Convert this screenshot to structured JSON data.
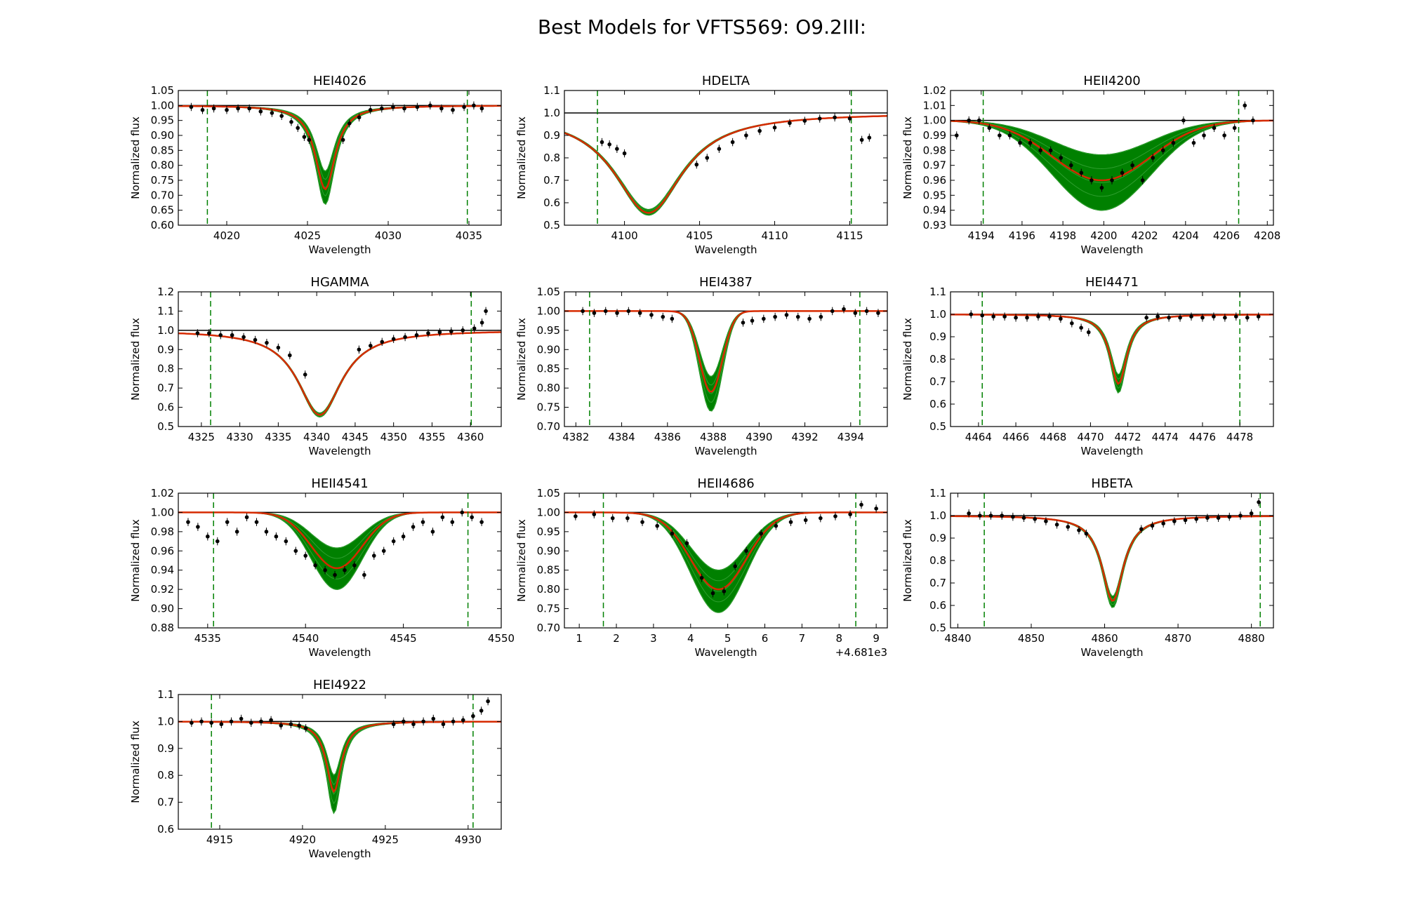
{
  "figure": {
    "title": "Best Models for VFTS569: O9.2III:",
    "colors": {
      "model": "#008000",
      "best": "#d62a00",
      "data": "#000000",
      "frame": "#000000"
    }
  },
  "chart_data": [
    {
      "type": "line",
      "title": "HEI4026",
      "xlabel": "Wavelength",
      "ylabel": "Normalized flux",
      "xlim": [
        4017,
        4037
      ],
      "ylim": [
        0.6,
        1.05
      ],
      "xticks": [
        4020,
        4025,
        4030,
        4035
      ],
      "xtick_labels": [
        "4020",
        "4025",
        "4030",
        "4035"
      ],
      "yticks": [
        0.6,
        0.65,
        0.7,
        0.75,
        0.8,
        0.85,
        0.9,
        0.95,
        1.0,
        1.05
      ],
      "ytick_labels": [
        "0.60",
        "0.65",
        "0.70",
        "0.75",
        "0.80",
        "0.85",
        "0.90",
        "0.95",
        "1.00",
        "1.05"
      ],
      "fit_window": [
        4018.8,
        4034.9
      ],
      "line_center": 4026.1,
      "model": {
        "kind": "lorentz",
        "width": 0.75,
        "depth_best": 0.28,
        "depth_min": 0.22,
        "depth_max": 0.33
      },
      "observed": {
        "x": [
          4017.8,
          4018.5,
          4019.2,
          4020.0,
          4020.7,
          4021.4,
          4022.1,
          4022.8,
          4023.4,
          4024.0,
          4024.4,
          4024.8,
          4025.1,
          4027.2,
          4027.6,
          4028.2,
          4028.9,
          4029.6,
          4030.3,
          4031.0,
          4031.8,
          4032.6,
          4033.3,
          4034.0,
          4034.7,
          4035.3,
          4035.8
        ],
        "y": [
          0.995,
          0.985,
          0.99,
          0.985,
          0.99,
          0.99,
          0.98,
          0.975,
          0.965,
          0.945,
          0.925,
          0.895,
          0.885,
          0.885,
          0.94,
          0.96,
          0.985,
          0.99,
          0.995,
          0.99,
          0.995,
          1.0,
          0.99,
          0.985,
          0.995,
          1.0,
          0.99
        ]
      }
    },
    {
      "type": "line",
      "title": "HDELTA",
      "xlabel": "Wavelength",
      "ylabel": "Normalized flux",
      "xlim": [
        4096,
        4117.5
      ],
      "ylim": [
        0.5,
        1.1
      ],
      "xticks": [
        4100,
        4105,
        4110,
        4115
      ],
      "xtick_labels": [
        "4100",
        "4105",
        "4110",
        "4115"
      ],
      "yticks": [
        0.5,
        0.6,
        0.7,
        0.8,
        0.9,
        1.0,
        1.1
      ],
      "ytick_labels": [
        "0.5",
        "0.6",
        "0.7",
        "0.8",
        "0.9",
        "1.0",
        "1.1"
      ],
      "fit_window": [
        4098.2,
        4115.1
      ],
      "line_center": 4101.6,
      "model": {
        "kind": "lorentz",
        "width": 2.8,
        "depth_best": 0.445,
        "depth_min": 0.43,
        "depth_max": 0.455
      },
      "observed": {
        "x": [
          4098.5,
          4099.0,
          4099.5,
          4100.0,
          4104.8,
          4105.5,
          4106.3,
          4107.2,
          4108.1,
          4109.0,
          4110.0,
          4111.0,
          4112.0,
          4113.0,
          4114.0,
          4115.0,
          4115.8,
          4116.3
        ],
        "y": [
          0.87,
          0.86,
          0.84,
          0.82,
          0.77,
          0.8,
          0.84,
          0.87,
          0.9,
          0.92,
          0.935,
          0.955,
          0.965,
          0.975,
          0.98,
          0.975,
          0.88,
          0.89
        ]
      }
    },
    {
      "type": "line",
      "title": "HEII4200",
      "xlabel": "Wavelength",
      "ylabel": "Normalized flux",
      "xlim": [
        4192.5,
        4208.3
      ],
      "ylim": [
        0.93,
        1.02
      ],
      "xticks": [
        4194,
        4196,
        4198,
        4200,
        4202,
        4204,
        4206,
        4208
      ],
      "xtick_labels": [
        "4194",
        "4196",
        "4198",
        "4200",
        "4202",
        "4204",
        "4206",
        "4208"
      ],
      "yticks": [
        0.93,
        0.94,
        0.95,
        0.96,
        0.97,
        0.98,
        0.99,
        1.0,
        1.01,
        1.02
      ],
      "ytick_labels": [
        "0.93",
        "0.94",
        "0.95",
        "0.96",
        "0.97",
        "0.98",
        "0.99",
        "1.00",
        "1.01",
        "1.02"
      ],
      "fit_window": [
        4194.1,
        4206.6
      ],
      "line_center": 4199.9,
      "model": {
        "kind": "gauss",
        "width": 2.4,
        "depth_best": 0.04,
        "depth_min": 0.023,
        "depth_max": 0.06
      },
      "observed": {
        "x": [
          4192.8,
          4193.4,
          4193.9,
          4194.4,
          4194.9,
          4195.4,
          4195.9,
          4196.4,
          4196.9,
          4197.4,
          4197.9,
          4198.4,
          4198.9,
          4199.4,
          4199.9,
          4200.4,
          4200.9,
          4201.4,
          4201.9,
          4202.4,
          4202.9,
          4203.4,
          4203.9,
          4204.4,
          4204.9,
          4205.4,
          4205.9,
          4206.4,
          4206.9,
          4207.3
        ],
        "y": [
          0.99,
          1.0,
          1.0,
          0.995,
          0.99,
          0.99,
          0.985,
          0.985,
          0.98,
          0.98,
          0.975,
          0.97,
          0.965,
          0.96,
          0.955,
          0.96,
          0.965,
          0.97,
          0.96,
          0.975,
          0.98,
          0.985,
          1.0,
          0.985,
          0.99,
          0.995,
          0.99,
          0.995,
          1.01,
          1.0
        ]
      }
    },
    {
      "type": "line",
      "title": "HGAMMA",
      "xlabel": "Wavelength",
      "ylabel": "Normalized flux",
      "xlim": [
        4322,
        4364
      ],
      "ylim": [
        0.5,
        1.2
      ],
      "xticks": [
        4325,
        4330,
        4335,
        4340,
        4345,
        4350,
        4355,
        4360
      ],
      "xtick_labels": [
        "4325",
        "4330",
        "4335",
        "4340",
        "4345",
        "4350",
        "4355",
        "4360"
      ],
      "yticks": [
        0.5,
        0.6,
        0.7,
        0.8,
        0.9,
        1.0,
        1.1,
        1.2
      ],
      "ytick_labels": [
        "0.5",
        "0.6",
        "0.7",
        "0.8",
        "0.9",
        "1.0",
        "1.1",
        "1.2"
      ],
      "fit_window": [
        4326.2,
        4360.1
      ],
      "line_center": 4340.4,
      "model": {
        "kind": "lorentz",
        "width": 3.5,
        "depth_best": 0.44,
        "depth_min": 0.43,
        "depth_max": 0.45
      },
      "observed": {
        "x": [
          4324.5,
          4326.0,
          4327.5,
          4329.0,
          4330.5,
          4332.0,
          4333.5,
          4335.0,
          4336.5,
          4338.5,
          4345.5,
          4347.0,
          4348.5,
          4350.0,
          4351.5,
          4353.0,
          4354.5,
          4356.0,
          4357.5,
          4359.0,
          4360.5,
          4361.5,
          4362.0
        ],
        "y": [
          0.985,
          0.985,
          0.975,
          0.975,
          0.965,
          0.95,
          0.935,
          0.91,
          0.87,
          0.77,
          0.9,
          0.92,
          0.94,
          0.955,
          0.965,
          0.975,
          0.985,
          0.99,
          0.995,
          1.0,
          1.01,
          1.04,
          1.1
        ]
      }
    },
    {
      "type": "line",
      "title": "HEI4387",
      "xlabel": "Wavelength",
      "ylabel": "Normalized flux",
      "xlim": [
        4381.5,
        4395.6
      ],
      "ylim": [
        0.7,
        1.05
      ],
      "xticks": [
        4382,
        4384,
        4386,
        4388,
        4390,
        4392,
        4394
      ],
      "xtick_labels": [
        "4382",
        "4384",
        "4386",
        "4388",
        "4390",
        "4392",
        "4394"
      ],
      "yticks": [
        0.7,
        0.75,
        0.8,
        0.85,
        0.9,
        0.95,
        1.0,
        1.05
      ],
      "ytick_labels": [
        "0.70",
        "0.75",
        "0.80",
        "0.85",
        "0.90",
        "0.95",
        "1.00",
        "1.05"
      ],
      "fit_window": [
        4382.6,
        4394.4
      ],
      "line_center": 4387.9,
      "model": {
        "kind": "gauss",
        "width": 0.5,
        "depth_best": 0.21,
        "depth_min": 0.17,
        "depth_max": 0.26
      },
      "observed": {
        "x": [
          4382.3,
          4382.8,
          4383.3,
          4383.8,
          4384.3,
          4384.8,
          4385.3,
          4385.8,
          4386.2,
          4389.3,
          4389.7,
          4390.2,
          4390.7,
          4391.2,
          4391.7,
          4392.2,
          4392.7,
          4393.2,
          4393.7,
          4394.2,
          4394.7,
          4395.2
        ],
        "y": [
          1.0,
          0.995,
          1.0,
          0.995,
          1.0,
          0.995,
          0.99,
          0.985,
          0.98,
          0.97,
          0.975,
          0.98,
          0.985,
          0.99,
          0.985,
          0.98,
          0.985,
          1.0,
          1.005,
          0.995,
          1.0,
          0.995
        ]
      }
    },
    {
      "type": "line",
      "title": "HEI4471",
      "xlabel": "Wavelength",
      "ylabel": "Normalized flux",
      "xlim": [
        4462.5,
        4479.8
      ],
      "ylim": [
        0.5,
        1.1
      ],
      "xticks": [
        4464,
        4466,
        4468,
        4470,
        4472,
        4474,
        4476,
        4478
      ],
      "xtick_labels": [
        "4464",
        "4466",
        "4468",
        "4470",
        "4472",
        "4474",
        "4476",
        "4478"
      ],
      "yticks": [
        0.5,
        0.6,
        0.7,
        0.8,
        0.9,
        1.0,
        1.1
      ],
      "ytick_labels": [
        "0.5",
        "0.6",
        "0.7",
        "0.8",
        "0.9",
        "1.0",
        "1.1"
      ],
      "fit_window": [
        4464.2,
        4478.0
      ],
      "line_center": 4471.5,
      "model": {
        "kind": "lorentz",
        "width": 0.55,
        "depth_best": 0.31,
        "depth_min": 0.27,
        "depth_max": 0.35
      },
      "observed": {
        "x": [
          4463.6,
          4464.2,
          4464.8,
          4465.4,
          4466.0,
          4466.6,
          4467.2,
          4467.8,
          4468.4,
          4469.0,
          4469.5,
          4469.9,
          4473.0,
          4473.6,
          4474.2,
          4474.8,
          4475.4,
          4476.0,
          4476.6,
          4477.2,
          4477.8,
          4478.4,
          4479.0
        ],
        "y": [
          1.0,
          0.995,
          0.99,
          0.99,
          0.985,
          0.985,
          0.99,
          0.99,
          0.98,
          0.96,
          0.94,
          0.92,
          0.985,
          0.99,
          0.985,
          0.985,
          0.99,
          0.985,
          0.99,
          0.985,
          0.99,
          0.985,
          0.99
        ]
      }
    },
    {
      "type": "line",
      "title": "HEII4541",
      "xlabel": "Wavelength",
      "ylabel": "Normalized flux",
      "xlim": [
        4533.5,
        4550
      ],
      "ylim": [
        0.88,
        1.02
      ],
      "xticks": [
        4535,
        4540,
        4545,
        4550
      ],
      "xtick_labels": [
        "4535",
        "4540",
        "4545",
        "4550"
      ],
      "yticks": [
        0.88,
        0.9,
        0.92,
        0.94,
        0.96,
        0.98,
        1.0,
        1.02
      ],
      "ytick_labels": [
        "0.88",
        "0.90",
        "0.92",
        "0.94",
        "0.96",
        "0.98",
        "1.00",
        "1.02"
      ],
      "fit_window": [
        4535.3,
        4548.3
      ],
      "line_center": 4541.6,
      "model": {
        "kind": "gauss",
        "width": 1.3,
        "depth_best": 0.058,
        "depth_min": 0.037,
        "depth_max": 0.08
      },
      "observed": {
        "x": [
          4534.0,
          4534.5,
          4535.0,
          4535.5,
          4536.0,
          4536.5,
          4537.0,
          4537.5,
          4538.0,
          4538.5,
          4539.0,
          4539.5,
          4540.0,
          4540.5,
          4541.0,
          4541.5,
          4542.0,
          4542.5,
          4543.0,
          4543.5,
          4544.0,
          4544.5,
          4545.0,
          4545.5,
          4546.0,
          4546.5,
          4547.0,
          4547.5,
          4548.0,
          4548.5,
          4549.0
        ],
        "y": [
          0.99,
          0.985,
          0.975,
          0.97,
          0.99,
          0.98,
          0.995,
          0.99,
          0.98,
          0.975,
          0.97,
          0.96,
          0.955,
          0.945,
          0.94,
          0.935,
          0.94,
          0.945,
          0.935,
          0.955,
          0.96,
          0.97,
          0.975,
          0.985,
          0.99,
          0.98,
          0.995,
          0.99,
          1.0,
          0.995,
          0.99
        ]
      }
    },
    {
      "type": "line",
      "title": "HEII4686",
      "xlabel": "Wavelength",
      "ylabel": "Normalized flux",
      "xlim": [
        0.6,
        9.3
      ],
      "ylim": [
        0.7,
        1.05
      ],
      "x_offset_label": "+4.681e3",
      "xticks": [
        1,
        2,
        3,
        4,
        5,
        6,
        7,
        8,
        9
      ],
      "xtick_labels": [
        "1",
        "2",
        "3",
        "4",
        "5",
        "6",
        "7",
        "8",
        "9"
      ],
      "yticks": [
        0.7,
        0.75,
        0.8,
        0.85,
        0.9,
        0.95,
        1.0,
        1.05
      ],
      "ytick_labels": [
        "0.70",
        "0.75",
        "0.80",
        "0.85",
        "0.90",
        "0.95",
        "1.00",
        "1.05"
      ],
      "fit_window": [
        1.65,
        8.45
      ],
      "line_center": 4.75,
      "model": {
        "kind": "gauss",
        "width": 0.75,
        "depth_best": 0.2,
        "depth_min": 0.15,
        "depth_max": 0.26
      },
      "observed": {
        "x": [
          0.9,
          1.4,
          1.9,
          2.3,
          2.7,
          3.1,
          3.5,
          3.9,
          4.3,
          4.6,
          4.9,
          5.2,
          5.5,
          5.9,
          6.3,
          6.7,
          7.1,
          7.5,
          7.9,
          8.3,
          8.6,
          9.0
        ],
        "y": [
          0.99,
          0.995,
          0.985,
          0.985,
          0.975,
          0.965,
          0.945,
          0.92,
          0.83,
          0.79,
          0.795,
          0.86,
          0.9,
          0.945,
          0.965,
          0.975,
          0.98,
          0.985,
          0.99,
          0.995,
          1.02,
          1.01
        ]
      }
    },
    {
      "type": "line",
      "title": "HBETA",
      "xlabel": "Wavelength",
      "ylabel": "Normalized flux",
      "xlim": [
        4839,
        4883
      ],
      "ylim": [
        0.5,
        1.1
      ],
      "xticks": [
        4840,
        4850,
        4860,
        4870,
        4880
      ],
      "xtick_labels": [
        "4840",
        "4850",
        "4860",
        "4870",
        "4880"
      ],
      "yticks": [
        0.5,
        0.6,
        0.7,
        0.8,
        0.9,
        1.0,
        1.1
      ],
      "ytick_labels": [
        "0.5",
        "0.6",
        "0.7",
        "0.8",
        "0.9",
        "1.0",
        "1.1"
      ],
      "fit_window": [
        4843.6,
        4881.2
      ],
      "line_center": 4861.1,
      "model": {
        "kind": "lorentz",
        "width": 1.8,
        "depth_best": 0.38,
        "depth_min": 0.36,
        "depth_max": 0.41
      },
      "observed": {
        "x": [
          4841.5,
          4843.0,
          4844.5,
          4846.0,
          4847.5,
          4849.0,
          4850.5,
          4852.0,
          4853.5,
          4855.0,
          4856.5,
          4857.5,
          4865.0,
          4866.5,
          4868.0,
          4869.5,
          4871.0,
          4872.5,
          4874.0,
          4875.5,
          4877.0,
          4878.5,
          4880.0,
          4881.0
        ],
        "y": [
          1.01,
          1.0,
          1.0,
          1.0,
          0.995,
          0.99,
          0.985,
          0.975,
          0.96,
          0.95,
          0.935,
          0.92,
          0.94,
          0.955,
          0.965,
          0.975,
          0.98,
          0.985,
          0.99,
          0.99,
          0.995,
          1.0,
          1.01,
          1.06
        ]
      }
    },
    {
      "type": "line",
      "title": "HEI4922",
      "xlabel": "Wavelength",
      "ylabel": "Normalized flux",
      "xlim": [
        4912.5,
        4932
      ],
      "ylim": [
        0.6,
        1.1
      ],
      "xticks": [
        4915,
        4920,
        4925,
        4930
      ],
      "xtick_labels": [
        "4915",
        "4920",
        "4925",
        "4930"
      ],
      "yticks": [
        0.6,
        0.7,
        0.8,
        0.9,
        1.0,
        1.1
      ],
      "ytick_labels": [
        "0.6",
        "0.7",
        "0.8",
        "0.9",
        "1.0",
        "1.1"
      ],
      "fit_window": [
        4914.5,
        4930.3
      ],
      "line_center": 4921.9,
      "model": {
        "kind": "lorentz",
        "width": 0.55,
        "depth_best": 0.26,
        "depth_min": 0.2,
        "depth_max": 0.34
      },
      "observed": {
        "x": [
          4913.3,
          4913.9,
          4914.5,
          4915.1,
          4915.7,
          4916.3,
          4916.9,
          4917.5,
          4918.1,
          4918.7,
          4919.3,
          4919.8,
          4920.2,
          4925.5,
          4926.1,
          4926.7,
          4927.3,
          4927.9,
          4928.5,
          4929.1,
          4929.7,
          4930.3,
          4930.8,
          4931.2
        ],
        "y": [
          0.995,
          1.0,
          0.995,
          0.99,
          1.0,
          1.01,
          0.995,
          1.0,
          1.005,
          0.985,
          0.99,
          0.985,
          0.975,
          0.99,
          1.0,
          0.99,
          1.0,
          1.01,
          0.99,
          1.0,
          1.005,
          1.02,
          1.04,
          1.075
        ]
      }
    }
  ]
}
